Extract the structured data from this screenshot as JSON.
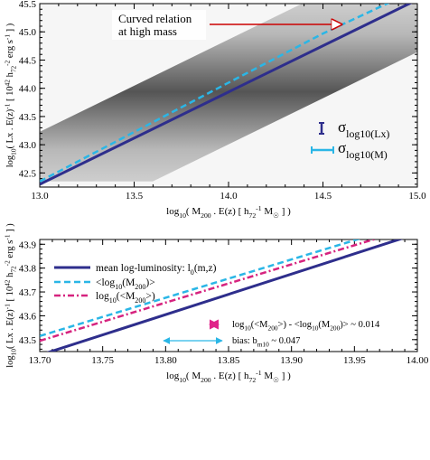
{
  "chart_data": [
    {
      "type": "line",
      "xlim": [
        13.0,
        15.0
      ],
      "ylim": [
        42.25,
        45.5
      ],
      "xticks": [
        "13.0",
        "13.5",
        "14.0",
        "14.5",
        "15.0"
      ],
      "yticks": [
        "42.5",
        "43.0",
        "43.5",
        "44.0",
        "44.5",
        "45.0",
        "45.5"
      ],
      "xlabel": [
        "log",
        "10",
        "( M",
        "200",
        " . E(z)    [ h",
        "72",
        "-1",
        " M",
        "☉",
        " ] )"
      ],
      "ylabel": [
        "log",
        "10",
        "(  Lx . E(z)",
        "-1",
        "   [ 10",
        "42",
        " h",
        "72",
        "-2",
        " erg s",
        "-1",
        " ] )"
      ],
      "background": "grayscale density of log-luminosity distribution around the mean relation",
      "series": [
        {
          "x": [
            13.0,
            15.0
          ],
          "y": [
            42.3,
            45.57
          ],
          "color": "#2e2e8c",
          "style": "solid"
        },
        {
          "x": [
            13.0,
            14.0,
            14.5,
            15.0
          ],
          "y": [
            42.35,
            44.1,
            44.97,
            45.75
          ],
          "color": "#2ab6e6",
          "style": "dashed"
        }
      ],
      "annotation": {
        "lines": [
          "Curved relation",
          "at high mass"
        ]
      },
      "legend_items": [
        {
          "symbol": "σ",
          "sub": "log10(Lx)",
          "color": "#2e2e8c"
        },
        {
          "symbol": "σ",
          "sub": "log10(M)",
          "color": "#2ab6e6"
        }
      ]
    },
    {
      "type": "line",
      "xlim": [
        13.7,
        14.0
      ],
      "ylim": [
        43.45,
        43.92
      ],
      "xticks": [
        "13.70",
        "13.75",
        "13.80",
        "13.85",
        "13.90",
        "13.95",
        "14.00"
      ],
      "yticks": [
        "43.5",
        "43.6",
        "43.7",
        "43.8",
        "43.9"
      ],
      "xlabel": [
        "log",
        "10",
        "( M",
        "200",
        " . E(z)    [ h",
        "72",
        "-1",
        " M",
        "☉",
        " ] )"
      ],
      "ylabel": [
        "log",
        "10",
        "(  Lx . E(z)",
        "-1",
        "   [ 10",
        "42",
        " h",
        "72",
        "-2",
        " erg s",
        "-1",
        " ] )"
      ],
      "series": [
        {
          "name": [
            "mean log-luminosity: l",
            "0",
            "(m,z)"
          ],
          "x": [
            13.7,
            14.0
          ],
          "y": [
            43.435,
            43.945
          ],
          "color": "#2e2e8c",
          "style": "solid"
        },
        {
          "name": [
            "<log",
            "10",
            "(M",
            "200",
            ")>"
          ],
          "x": [
            13.7,
            13.977
          ],
          "y": [
            43.515,
            43.96
          ],
          "color": "#2ab6e6",
          "style": "dashed"
        },
        {
          "name": [
            "log",
            "10",
            "(<M",
            "200",
            ">)"
          ],
          "x": [
            13.7,
            13.99
          ],
          "y": [
            43.495,
            43.96
          ],
          "color": "#d6237f",
          "style": "dashdot"
        }
      ],
      "annotations": [
        {
          "parts": [
            "log",
            "10",
            "(<M",
            "200",
            ">) - <log",
            "10",
            "(M",
            "200",
            ")>  ~ 0.014"
          ],
          "arrow_color": "#e0238a"
        },
        {
          "parts": [
            "bias: b",
            "m10",
            " ~ 0.047"
          ],
          "arrow_color": "#2ab6e6"
        }
      ]
    }
  ]
}
